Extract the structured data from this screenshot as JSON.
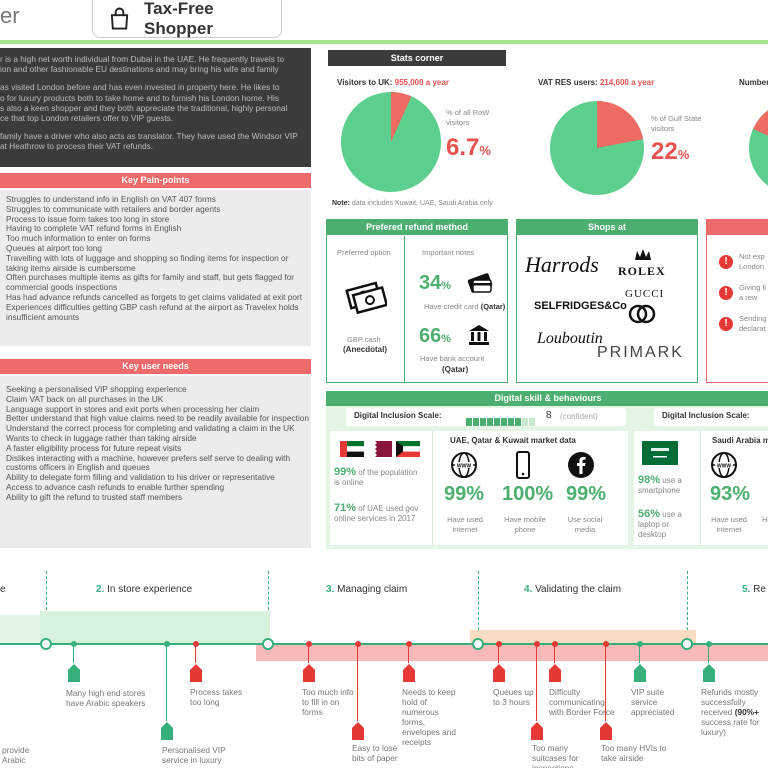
{
  "header": {
    "title_fragment": "er",
    "product_title": "Tax-Free Shopper"
  },
  "persona": {
    "lines": [
      "r is a high net worth individual from Dubai in the UAE. He frequently travels to",
      "ion and other fashionable EU destinations and may bring his wife and family",
      "",
      "as visited London before and has even invested in property here. He likes to",
      "o for luxury products both to take home and to furnish his London home. His",
      "s also a keen shopper and they both appreciate the traditional, highly personal",
      "ce that top London retailers offer to VIP guests.",
      "",
      "family have a driver who also acts as translator. They have used the Windsor VIP",
      "at Heathrow to process their VAT refunds."
    ]
  },
  "pain_points": {
    "title": "Key Pain-points",
    "items": [
      "Struggles to understand info in English on VAT 407 forms",
      "Struggles to communicate with retailers and border agents",
      "Process  to issue form takes too long in store",
      "Having to complete VAT refund forms in English",
      "Too much information to enter on forms",
      "Queues at airport too long",
      "Travelling with lots of luggage and shopping so finding items for inspection or taking items airside is cumbersome",
      "Often purchases multiple items as gifts for family and staff, but gets flagged for commercial goods inspections",
      "Has had advance refunds cancelled as forgets to get claims validated at exit port",
      "Experiences difficulties getting GBP cash refund at the airport as Travelex holds insufficient amounts"
    ]
  },
  "user_needs": {
    "title": "Key user needs",
    "items": [
      "Seeking a personalised VIP shopping experience",
      "Claim VAT back on all purchases in the UK",
      "Language support in stores and exit ports when processing her claim",
      "Better understand that high value claims need to be readily available for inspection",
      "Understand the correct process for completing and validating a claim in the UK",
      "Wants to check in luggage rather than taking airside",
      "A faster eligibility process for future repeat visits",
      "Dislikes interacting with a machine, however prefers self serve to dealing with customs officers in English and queues",
      "Ability to delegate form filling and validation to his driver or representative",
      "Access to advance cash refunds to enable further spending",
      "Ability to gift the refund to trusted staff members"
    ]
  },
  "stats": {
    "title": "Stats corner",
    "visitors_label": "Visitors to UK:",
    "visitors_value": "955,000 a year",
    "visitors_desc": "% of all RoW visitors",
    "visitors_pct": "6.7",
    "vat_label": "VAT RES users:",
    "vat_value": "214,600 a year",
    "vat_desc": "% of Gulf State visitors",
    "vat_pct": "22",
    "number_label": "Number",
    "pct_sign": "%",
    "note_label": "Note:",
    "note_text": "data includes Kuwait, UAE, Saudi Arabia only"
  },
  "chart_data": [
    {
      "type": "pie",
      "categories": [
        "RoW visitors",
        "Other"
      ],
      "values": [
        6.7,
        93.3
      ]
    },
    {
      "type": "pie",
      "categories": [
        "Gulf State visitors",
        "Other"
      ],
      "values": [
        22,
        78
      ]
    }
  ],
  "refund": {
    "title": "Prefered refund method",
    "preferred_label": "Preferred option",
    "notes_label": "Important notes",
    "cash_label": "GBP cash",
    "cash_sub": "(Anecdotal)",
    "credit_pct": "34",
    "credit_desc": "Have credit card",
    "credit_country": "(Qatar)",
    "bank_pct": "66",
    "bank_desc": "Have bank account",
    "bank_country": "(Qatar)",
    "pct_sign": "%"
  },
  "shops": {
    "title": "Shops at",
    "brands": [
      "Harrods",
      "ROLEX",
      "SELFRIDGES&Co",
      "GUCCI",
      "Louboutin",
      "PRIMARK"
    ]
  },
  "risks": {
    "items": [
      "Not exp London",
      "Giving fi as a rew",
      "Sending declarat"
    ]
  },
  "digital": {
    "title": "Digital skill & behaviours",
    "scale_label": "Digital Inclusion Scale:",
    "scale_value": "8",
    "scale_note": "(confident)",
    "scale_label_2": "Digital Inclusion Scale:",
    "market_title": "UAE, Qatar & Kuwait market data",
    "pop_pct": "99%",
    "pop_desc": "of the population is online",
    "gov_pct": "71%",
    "gov_desc": "of UAE used gov online services in 2017",
    "internet_pct": "99%",
    "internet_desc": "Have used internet",
    "mobile_pct": "100%",
    "mobile_desc": "Have mobile phone",
    "social_pct": "99%",
    "social_desc": "Use social media",
    "saudi_title": "Saudi Arabia ma",
    "smartphone_pct": "98%",
    "smartphone_desc": "use a smartphone",
    "laptop_pct": "56%",
    "laptop_desc": "use a laptop or desktop",
    "saudi_internet_pct": "93%",
    "saudi_internet_desc": "Have used internet",
    "saudi_h": "Ha"
  },
  "timeline": {
    "stages": [
      {
        "num": "",
        "label": "e"
      },
      {
        "num": "2.",
        "label": "In store experience"
      },
      {
        "num": "3.",
        "label": "Managing claim"
      },
      {
        "num": "4.",
        "label": "Validating the claim"
      },
      {
        "num": "5.",
        "label": "Re"
      }
    ],
    "events": [
      "provide Arabic",
      "Many high end stores have Arabic speakers",
      "Personalised VIP service in luxury stores",
      "Process takes too long",
      "Too much info to fill in on forms",
      "Easy to lose bits of paper",
      "Needs to keep hold of numerous forms, envelopes and receipts",
      "Queues up to 3 hours",
      "Too many suitcases for inspections",
      "Difficulty communicating with Border Force",
      "Too many HVIs to take airside",
      "VIP suite service appreciated",
      "Refunds mostly successfully received",
      "(90%+",
      "success rate for luxury)"
    ]
  },
  "colors": {
    "green": "#4caf6f",
    "red": "#ef6a6a",
    "dark": "#3b3b3b",
    "pie_green": "#5ccf8e",
    "pie_red": "#ee6b63"
  }
}
